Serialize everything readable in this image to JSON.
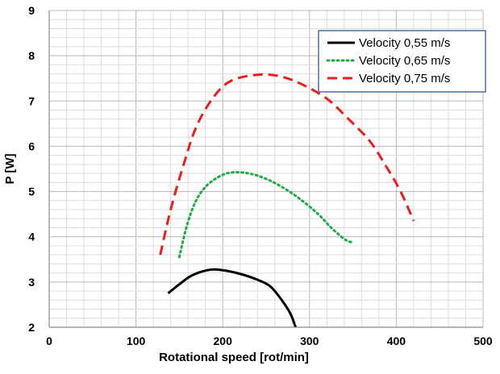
{
  "chart_data": {
    "type": "line",
    "title": "",
    "xlabel": "Rotational speed [rot/min]",
    "ylabel": "P [W]",
    "xlim": [
      0,
      500
    ],
    "ylim": [
      2,
      9
    ],
    "x_ticks": [
      "0",
      "100",
      "200",
      "300",
      "400",
      "500"
    ],
    "y_ticks": [
      "2",
      "3",
      "4",
      "5",
      "6",
      "7",
      "8",
      "9"
    ],
    "grid": true,
    "legend_position": "top-right",
    "series": [
      {
        "name": "Velocity 0,55 m/s",
        "color": "#000000",
        "style": "solid",
        "points": [
          [
            137,
            2.75
          ],
          [
            150,
            2.95
          ],
          [
            165,
            3.15
          ],
          [
            185,
            3.27
          ],
          [
            200,
            3.26
          ],
          [
            220,
            3.18
          ],
          [
            240,
            3.05
          ],
          [
            255,
            2.9
          ],
          [
            268,
            2.6
          ],
          [
            278,
            2.3
          ],
          [
            284,
            2.0
          ]
        ]
      },
      {
        "name": "Velocity 0,65 m/s",
        "color": "#22aa44",
        "style": "dotted",
        "points": [
          [
            150,
            3.55
          ],
          [
            158,
            4.2
          ],
          [
            168,
            4.75
          ],
          [
            180,
            5.1
          ],
          [
            195,
            5.32
          ],
          [
            210,
            5.42
          ],
          [
            230,
            5.4
          ],
          [
            250,
            5.28
          ],
          [
            270,
            5.08
          ],
          [
            290,
            4.82
          ],
          [
            310,
            4.5
          ],
          [
            325,
            4.2
          ],
          [
            340,
            3.95
          ],
          [
            348,
            3.88
          ]
        ]
      },
      {
        "name": "Velocity 0,75 m/s",
        "color": "#ee1c1c",
        "style": "dashed",
        "points": [
          [
            128,
            3.6
          ],
          [
            140,
            4.6
          ],
          [
            155,
            5.6
          ],
          [
            170,
            6.45
          ],
          [
            190,
            7.1
          ],
          [
            210,
            7.45
          ],
          [
            240,
            7.58
          ],
          [
            265,
            7.55
          ],
          [
            290,
            7.38
          ],
          [
            320,
            7.05
          ],
          [
            345,
            6.6
          ],
          [
            370,
            6.1
          ],
          [
            390,
            5.5
          ],
          [
            405,
            5.0
          ],
          [
            420,
            4.35
          ]
        ]
      }
    ]
  }
}
